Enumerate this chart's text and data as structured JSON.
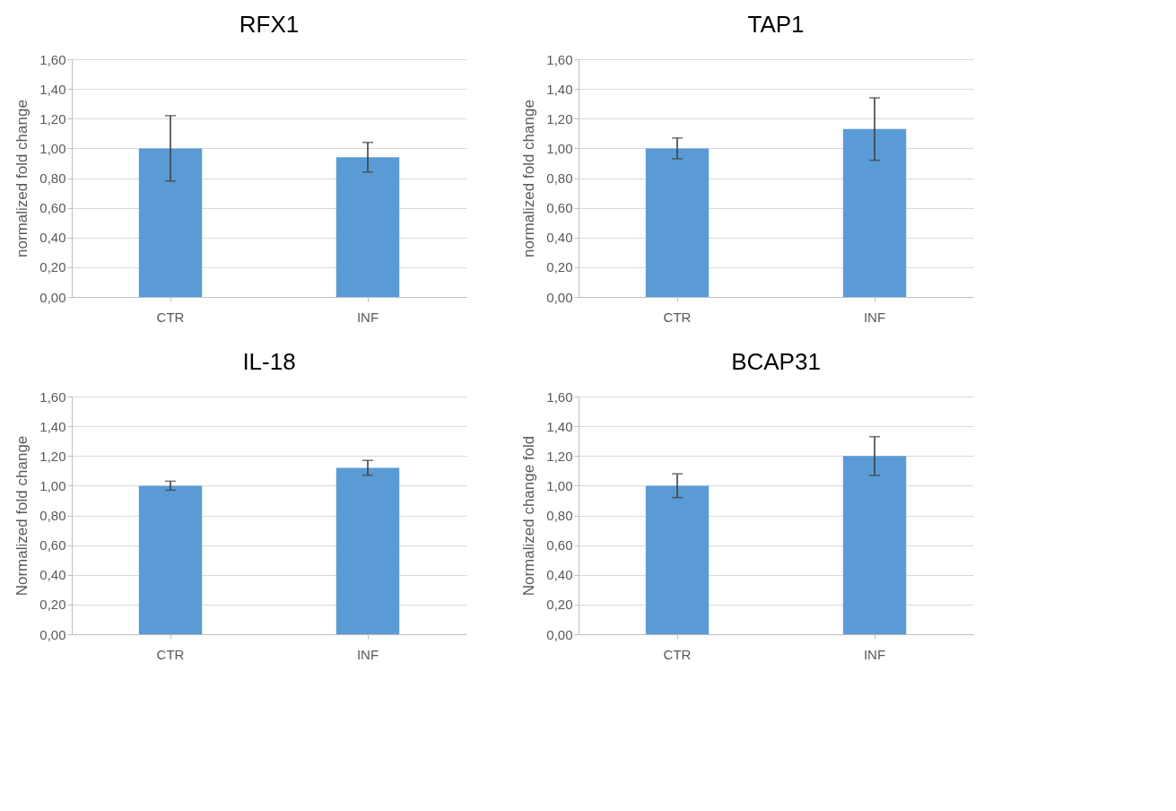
{
  "chart_data": [
    {
      "type": "bar",
      "title": "RFX1",
      "ylabel": "normalized fold change",
      "categories": [
        "CTR",
        "INF"
      ],
      "values": [
        1.0,
        0.94
      ],
      "errors": [
        [
          0.78,
          1.22
        ],
        [
          0.84,
          1.04
        ]
      ],
      "color": "#5b9bd5",
      "ylim": [
        0,
        1.6
      ],
      "yticks": [
        {
          "value": 0,
          "label": "0,00"
        },
        {
          "value": 0.2,
          "label": "0,20"
        },
        {
          "value": 0.4,
          "label": "0,40"
        },
        {
          "value": 0.6,
          "label": "0,60"
        },
        {
          "value": 0.8,
          "label": "0,80"
        },
        {
          "value": 1.0,
          "label": "1,00"
        },
        {
          "value": 1.2,
          "label": "1,20"
        },
        {
          "value": 1.4,
          "label": "1,40"
        },
        {
          "value": 1.6,
          "label": "1,60"
        }
      ],
      "grid": "y"
    },
    {
      "type": "bar",
      "title": "TAP1",
      "ylabel": "normalized fold change",
      "categories": [
        "CTR",
        "INF"
      ],
      "values": [
        1.0,
        1.13
      ],
      "errors": [
        [
          0.93,
          1.07
        ],
        [
          0.92,
          1.34
        ]
      ],
      "color": "#5b9bd5",
      "ylim": [
        0,
        1.6
      ],
      "yticks": [
        {
          "value": 0,
          "label": "0,00"
        },
        {
          "value": 0.2,
          "label": "0,20"
        },
        {
          "value": 0.4,
          "label": "0,40"
        },
        {
          "value": 0.6,
          "label": "0,60"
        },
        {
          "value": 0.8,
          "label": "0,80"
        },
        {
          "value": 1.0,
          "label": "1,00"
        },
        {
          "value": 1.2,
          "label": "1,20"
        },
        {
          "value": 1.4,
          "label": "1,40"
        },
        {
          "value": 1.6,
          "label": "1,60"
        }
      ],
      "grid": "y"
    },
    {
      "type": "bar",
      "title": "IL-18",
      "ylabel": "Normalized fold change",
      "categories": [
        "CTR",
        "INF"
      ],
      "values": [
        1.0,
        1.12
      ],
      "errors": [
        [
          0.97,
          1.03
        ],
        [
          1.07,
          1.17
        ]
      ],
      "color": "#5b9bd5",
      "ylim": [
        0,
        1.6
      ],
      "yticks": [
        {
          "value": 0,
          "label": "0,00"
        },
        {
          "value": 0.2,
          "label": "0,20"
        },
        {
          "value": 0.4,
          "label": "0,40"
        },
        {
          "value": 0.6,
          "label": "0,60"
        },
        {
          "value": 0.8,
          "label": "0,80"
        },
        {
          "value": 1.0,
          "label": "1,00"
        },
        {
          "value": 1.2,
          "label": "1,20"
        },
        {
          "value": 1.4,
          "label": "1,40"
        },
        {
          "value": 1.6,
          "label": "1,60"
        }
      ],
      "grid": "y"
    },
    {
      "type": "bar",
      "title": "BCAP31",
      "ylabel": "Normalized change fold",
      "categories": [
        "CTR",
        "INF"
      ],
      "values": [
        1.0,
        1.2
      ],
      "errors": [
        [
          0.92,
          1.08
        ],
        [
          1.07,
          1.33
        ]
      ],
      "color": "#5b9bd5",
      "ylim": [
        0,
        1.6
      ],
      "yticks": [
        {
          "value": 0,
          "label": "0,00"
        },
        {
          "value": 0.2,
          "label": "0,20"
        },
        {
          "value": 0.4,
          "label": "0,40"
        },
        {
          "value": 0.6,
          "label": "0,60"
        },
        {
          "value": 0.8,
          "label": "0,80"
        },
        {
          "value": 1.0,
          "label": "1,00"
        },
        {
          "value": 1.2,
          "label": "1,20"
        },
        {
          "value": 1.4,
          "label": "1,40"
        },
        {
          "value": 1.6,
          "label": "1,60"
        }
      ],
      "grid": "y"
    }
  ]
}
